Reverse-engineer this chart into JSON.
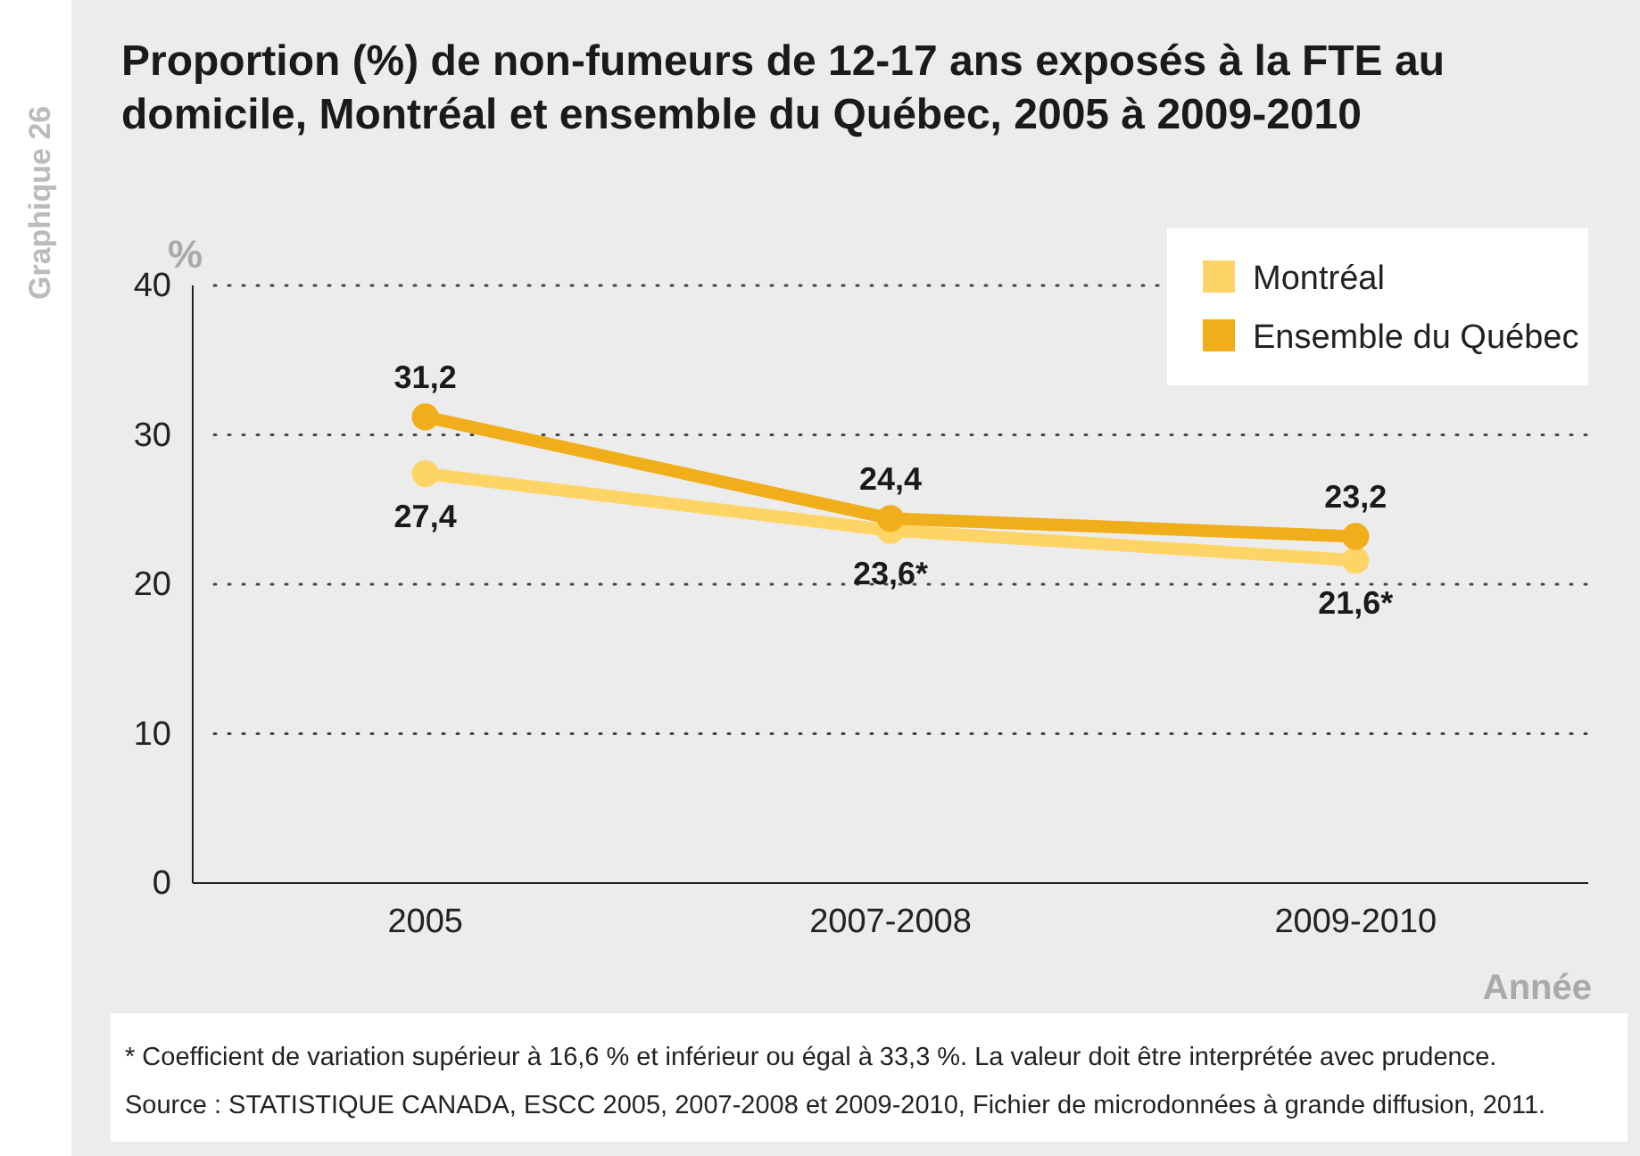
{
  "chart_data": {
    "type": "line",
    "title": "Proportion (%) de non-fumeurs de 12-17 ans exposés à la FTE au domicile, Montréal et ensemble du Québec, 2005 à 2009-2010",
    "xlabel": "Année",
    "ylabel": "%",
    "categories": [
      "2005",
      "2007-2008",
      "2009-2010"
    ],
    "series": [
      {
        "name": "Montréal",
        "color": "#ffd466",
        "values": [
          27.4,
          23.6,
          21.6
        ],
        "value_labels": [
          "27,4",
          "23,6*",
          "21,6*"
        ]
      },
      {
        "name": "Ensemble du Québec",
        "color": "#f0ae1a",
        "values": [
          31.2,
          24.4,
          23.2
        ],
        "value_labels": [
          "31,2",
          "24,4",
          "23,2"
        ]
      }
    ],
    "ylim": [
      0,
      40
    ],
    "yticks": [
      0,
      10,
      20,
      30,
      40
    ],
    "grid": "y",
    "legend": "top right",
    "marker": "circle",
    "line_style": "solid",
    "annotations": [
      "Graphique 26",
      "* Coefficient de variation supérieur à 16,6 % et inférieur ou égal à 33,3 %. La valeur doit être interprétée avec prudence.",
      "Source : STATISTIQUE CANADA, ESCC 2005, 2007-2008 et 2009-2010, Fichier de microdonnées à grande diffusion, 2011."
    ]
  }
}
